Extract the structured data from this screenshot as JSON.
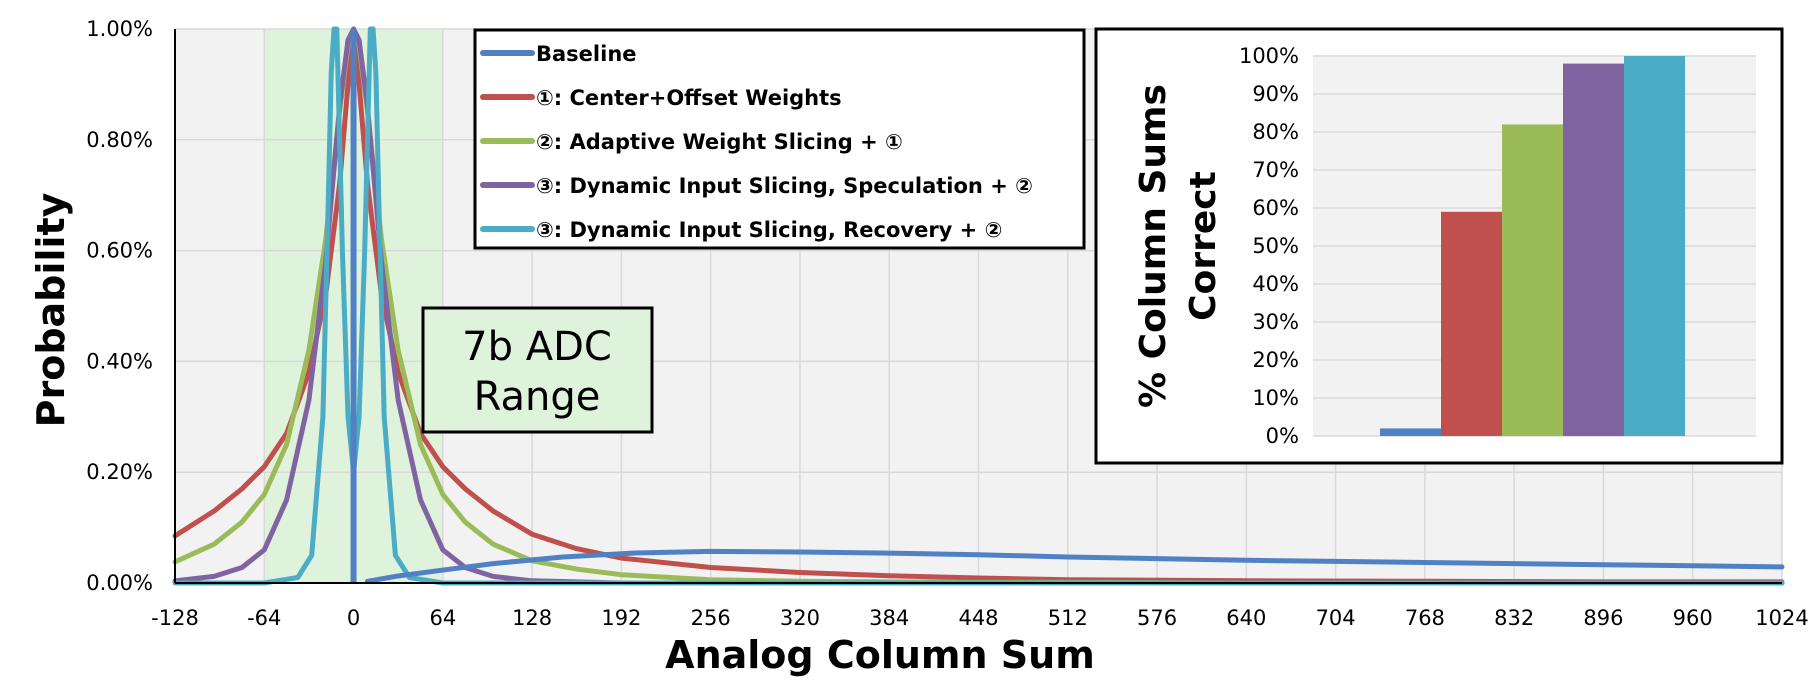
{
  "chart_data": [
    {
      "type": "line",
      "xlabel": "Analog Column Sum",
      "ylabel": "Probability",
      "x_ticks": [
        "-128",
        "-64",
        "0",
        "64",
        "128",
        "192",
        "256",
        "320",
        "384",
        "448",
        "512",
        "576",
        "640",
        "704",
        "768",
        "832",
        "896",
        "960",
        "1024"
      ],
      "y_ticks": [
        "0.00%",
        "0.20%",
        "0.40%",
        "0.60%",
        "0.80%",
        "1.00%"
      ],
      "xlim": [
        -128,
        1024
      ],
      "ylim": [
        0,
        1.0
      ],
      "y_unit": "%",
      "grid": true,
      "legend_position": "top-center",
      "highlight_region": {
        "x_range": [
          -64,
          64
        ],
        "label_line1": "7b ADC",
        "label_line2": "Range",
        "color": "#dff3dc"
      },
      "series": [
        {
          "name": "Baseline",
          "color": "#4f81c4",
          "x": [
            10,
            30,
            60,
            100,
            150,
            200,
            256,
            320,
            384,
            448,
            512,
            576,
            640,
            704,
            768,
            832,
            896,
            960,
            1024
          ],
          "y": [
            0.003,
            0.012,
            0.022,
            0.035,
            0.047,
            0.054,
            0.057,
            0.056,
            0.054,
            0.051,
            0.047,
            0.044,
            0.041,
            0.039,
            0.037,
            0.035,
            0.033,
            0.031,
            0.029
          ],
          "spike_x": 0,
          "spike_y": 1.0
        },
        {
          "name": "①: Center+Offset Weights",
          "color": "#c0504d",
          "x": [
            -128,
            -100,
            -80,
            -64,
            -48,
            -32,
            -20,
            -10,
            -4,
            0,
            4,
            10,
            20,
            32,
            48,
            64,
            80,
            100,
            128,
            160,
            192,
            256,
            320,
            384,
            448,
            512,
            640,
            768,
            896,
            1024
          ],
          "y": [
            0.085,
            0.13,
            0.17,
            0.21,
            0.27,
            0.38,
            0.52,
            0.72,
            0.9,
            1.0,
            0.9,
            0.72,
            0.52,
            0.38,
            0.27,
            0.21,
            0.17,
            0.13,
            0.088,
            0.062,
            0.045,
            0.028,
            0.019,
            0.013,
            0.009,
            0.006,
            0.004,
            0.003,
            0.002,
            0.002
          ]
        },
        {
          "name": "②: Adaptive Weight Slicing + ①",
          "color": "#9bbb59",
          "x": [
            -128,
            -100,
            -80,
            -64,
            -48,
            -32,
            -20,
            -10,
            -4,
            0,
            4,
            10,
            20,
            32,
            48,
            64,
            80,
            100,
            128,
            160,
            192,
            256,
            320,
            384,
            448,
            512,
            640,
            768,
            1024
          ],
          "y": [
            0.038,
            0.07,
            0.11,
            0.16,
            0.25,
            0.42,
            0.62,
            0.85,
            0.97,
            1.0,
            0.97,
            0.85,
            0.62,
            0.42,
            0.25,
            0.16,
            0.11,
            0.07,
            0.04,
            0.025,
            0.015,
            0.006,
            0.003,
            0.002,
            0.001,
            0.001,
            0.0,
            0.0,
            0.0
          ]
        },
        {
          "name": "③: Dynamic Input Slicing, Speculation + ②",
          "color": "#8064a2",
          "x": [
            -128,
            -100,
            -80,
            -64,
            -48,
            -32,
            -20,
            -10,
            -4,
            0,
            4,
            10,
            20,
            32,
            48,
            64,
            80,
            100,
            128,
            192,
            256,
            512,
            1024
          ],
          "y": [
            0.004,
            0.012,
            0.028,
            0.06,
            0.15,
            0.33,
            0.58,
            0.86,
            0.98,
            1.0,
            0.98,
            0.86,
            0.58,
            0.33,
            0.15,
            0.06,
            0.028,
            0.012,
            0.004,
            0.0,
            0.0,
            0.0,
            0.0
          ]
        },
        {
          "name": "③: Dynamic Input Slicing, Recovery + ②",
          "color": "#4bacc6",
          "x": [
            -128,
            -64,
            -40,
            -30,
            -22,
            -18,
            -16,
            -14,
            -12,
            -8,
            -4,
            0,
            4,
            8,
            12,
            14,
            16,
            18,
            22,
            30,
            40,
            64,
            128,
            1024
          ],
          "y": [
            0.0,
            0.0,
            0.01,
            0.05,
            0.3,
            0.7,
            0.92,
            1.0,
            1.0,
            0.6,
            0.3,
            0.2,
            0.3,
            0.6,
            1.0,
            1.0,
            0.92,
            0.7,
            0.3,
            0.05,
            0.01,
            0.0,
            0.0,
            0.0
          ]
        }
      ]
    },
    {
      "type": "bar",
      "ylabel_line1": "% Column Sums",
      "ylabel_line2": "Correct",
      "y_ticks": [
        "0%",
        "10%",
        "20%",
        "30%",
        "40%",
        "50%",
        "60%",
        "70%",
        "80%",
        "90%",
        "100%"
      ],
      "ylim": [
        0,
        100
      ],
      "grid": true,
      "values": [
        2,
        59,
        82,
        98,
        100
      ],
      "colors": [
        "#4f81c4",
        "#c0504d",
        "#9bbb59",
        "#8064a2",
        "#4bacc6"
      ]
    }
  ]
}
